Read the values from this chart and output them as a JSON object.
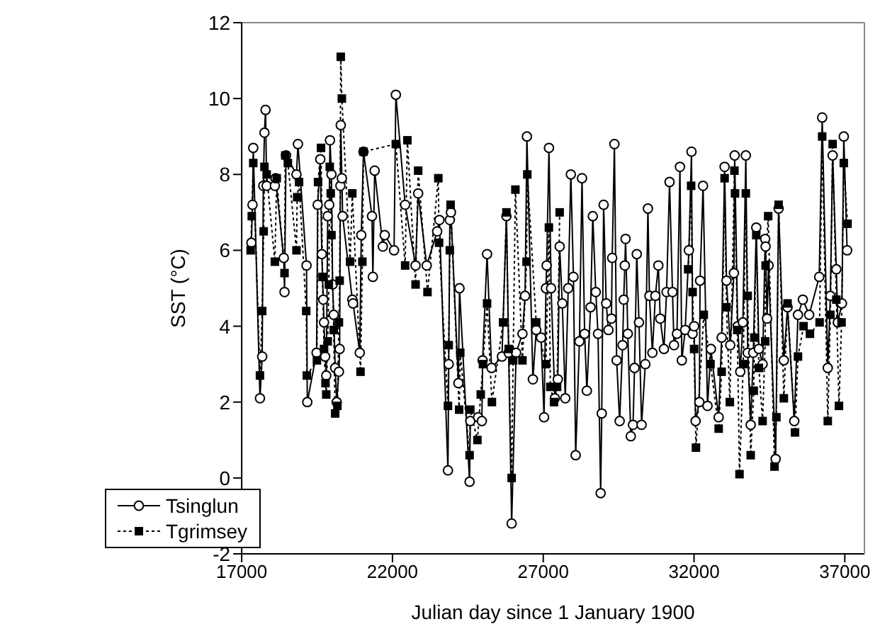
{
  "chart_data": {
    "type": "line",
    "xlabel": "Julian day since 1 January 1900",
    "ylabel": "SST (°C)",
    "xlim": [
      17000,
      37650
    ],
    "xticks": [
      17000,
      22000,
      27000,
      32000,
      37000
    ],
    "ylim": [
      -2,
      12
    ],
    "yticks": [
      -2,
      0,
      2,
      4,
      6,
      8,
      10,
      12
    ],
    "legend": "bottom left",
    "series": [
      {
        "name": "Tsinglun",
        "color": "#000000",
        "marker": "circle",
        "line_style": "solid",
        "x": [
          17321,
          17359,
          17383,
          17606,
          17680,
          17716,
          17754,
          17791,
          17828,
          18100,
          18124,
          18395,
          18420,
          18470,
          18816,
          18865,
          19150,
          19175,
          19483,
          19520,
          19606,
          19656,
          19705,
          19730,
          19767,
          19804,
          19853,
          19903,
          19927,
          19977,
          20014,
          20051,
          20100,
          20150,
          20224,
          20248,
          20273,
          20285,
          20322,
          20347,
          20668,
          20693,
          20915,
          20965,
          21039,
          21320,
          21350,
          21409,
          21681,
          21743,
          22052,
          22112,
          22420,
          22766,
          22852,
          23136,
          23482,
          23556,
          23840,
          23865,
          23902,
          23939,
          24186,
          24223,
          24557,
          24581,
          24841,
          24964,
          24989,
          25137,
          25285,
          25631,
          25779,
          25853,
          25952,
          26100,
          26310,
          26397,
          26458,
          26656,
          26767,
          26928,
          27027,
          27088,
          27113,
          27190,
          27260,
          27384,
          27483,
          27544,
          27631,
          27730,
          27828,
          27915,
          28001,
          28075,
          28199,
          28285,
          28372,
          28446,
          28569,
          28643,
          28742,
          28816,
          28903,
          28940,
          29002,
          29088,
          29162,
          29261,
          29286,
          29360,
          29434,
          29533,
          29631,
          29668,
          29705,
          29730,
          29804,
          29903,
          29977,
          30027,
          30101,
          30175,
          30261,
          30385,
          30471,
          30521,
          30619,
          30718,
          30817,
          30879,
          31002,
          31089,
          31188,
          31286,
          31336,
          31434,
          31533,
          31595,
          31706,
          31830,
          31916,
          31953,
          32003,
          32052,
          32176,
          32200,
          32299,
          32447,
          32560,
          32817,
          32916,
          33014,
          33076,
          33200,
          33323,
          33348,
          33447,
          33533,
          33620,
          33718,
          33780,
          33879,
          33965,
          34064,
          34150,
          34274,
          34360,
          34373,
          34422,
          34471,
          34706,
          34805,
          34978,
          35101,
          35324,
          35447,
          35608,
          35818,
          36151,
          36250,
          36435,
          36521,
          36596,
          36719,
          36768,
          36904,
          36966,
          37077
        ],
        "values": [
          6.2,
          7.2,
          8.7,
          2.1,
          3.2,
          7.7,
          9.1,
          9.7,
          7.7,
          7.7,
          7.9,
          5.8,
          4.9,
          8.5,
          8.0,
          8.8,
          5.6,
          2.0,
          3.3,
          7.2,
          8.4,
          5.9,
          4.7,
          4.1,
          3.2,
          2.7,
          6.9,
          7.2,
          8.9,
          8.0,
          5.1,
          4.3,
          2.9,
          2.0,
          2.8,
          3.4,
          7.7,
          9.3,
          7.9,
          6.9,
          4.7,
          4.6,
          3.3,
          6.4,
          8.6,
          6.9,
          5.3,
          8.1,
          6.1,
          6.4,
          6.0,
          10.1,
          7.2,
          5.6,
          7.5,
          5.6,
          6.5,
          6.8,
          0.2,
          3.0,
          6.8,
          7.0,
          2.5,
          5.0,
          -0.1,
          1.5,
          1.6,
          1.5,
          3.1,
          5.9,
          2.9,
          3.2,
          6.9,
          3.3,
          -1.2,
          3.3,
          3.8,
          4.8,
          9.0,
          2.6,
          3.9,
          3.7,
          1.6,
          5.0,
          5.6,
          8.7,
          5.0,
          2.1,
          2.6,
          6.1,
          4.6,
          2.1,
          5.0,
          8.0,
          5.3,
          0.6,
          3.6,
          7.9,
          3.8,
          2.3,
          4.5,
          6.9,
          4.9,
          3.8,
          -0.4,
          1.7,
          7.2,
          4.6,
          3.9,
          4.2,
          5.8,
          8.8,
          3.1,
          1.5,
          3.5,
          4.7,
          5.6,
          6.3,
          3.8,
          1.1,
          1.4,
          2.9,
          5.9,
          4.1,
          1.4,
          3.0,
          7.1,
          4.8,
          3.3,
          4.8,
          5.6,
          4.2,
          3.4,
          4.9,
          7.8,
          4.9,
          3.5,
          3.8,
          8.2,
          3.1,
          3.9,
          6.0,
          8.6,
          3.8,
          4.0,
          1.5,
          2.0,
          5.2,
          7.7,
          1.9,
          3.4,
          1.6,
          3.7,
          8.2,
          5.2,
          3.5,
          5.4,
          8.5,
          4.0,
          2.8,
          4.1,
          8.5,
          3.3,
          1.4,
          3.3,
          6.6,
          3.4,
          3.0,
          6.3,
          6.1,
          4.2,
          5.6,
          0.5,
          7.1,
          3.1,
          4.5,
          1.5,
          4.3,
          4.7,
          4.3,
          5.3,
          9.5,
          2.9,
          4.8,
          8.5,
          5.5,
          4.1,
          4.6,
          9.0,
          6.0
        ]
      },
      {
        "name": "Tgrimsey",
        "color": "#000000",
        "marker": "square",
        "line_style": "dotted",
        "x": [
          17297,
          17334,
          17383,
          17606,
          17680,
          17729,
          17754,
          17828,
          18100,
          18161,
          18420,
          18445,
          18532,
          18816,
          18840,
          18902,
          19140,
          19160,
          19495,
          19532,
          19631,
          19680,
          19730,
          19779,
          19804,
          19853,
          19890,
          19920,
          19952,
          19977,
          20051,
          20100,
          20174,
          20224,
          20248,
          20285,
          20322,
          20594,
          20668,
          20940,
          21002,
          21039,
          22111,
          22420,
          22494,
          22766,
          22852,
          23161,
          23520,
          23545,
          23840,
          23865,
          23902,
          23927,
          24211,
          24248,
          24557,
          24581,
          24816,
          24927,
          25001,
          25137,
          25297,
          25668,
          25779,
          25853,
          25952,
          26001,
          26076,
          26310,
          26446,
          26471,
          26767,
          27088,
          27187,
          27236,
          27359,
          27458,
          27544,
          29700,
          31805,
          31904,
          31953,
          32003,
          32064,
          32323,
          32546,
          32817,
          32916,
          33014,
          33076,
          33187,
          33340,
          33360,
          33434,
          33508,
          33632,
          33718,
          33780,
          33879,
          33980,
          34000,
          34064,
          34150,
          34274,
          34360,
          34373,
          34459,
          34669,
          34731,
          34805,
          34978,
          35101,
          35349,
          35447,
          35632,
          35843,
          36164,
          36250,
          36435,
          36521,
          36596,
          36719,
          36806,
          36892,
          36966,
          37090
        ],
        "values": [
          6.0,
          6.9,
          8.3,
          2.7,
          4.4,
          6.5,
          8.2,
          8.0,
          5.7,
          7.9,
          5.4,
          8.5,
          8.3,
          6.0,
          7.4,
          7.8,
          4.4,
          2.7,
          3.1,
          7.8,
          8.7,
          5.3,
          3.4,
          2.5,
          2.2,
          3.6,
          5.1,
          8.2,
          7.5,
          6.4,
          3.9,
          1.7,
          1.9,
          4.1,
          5.2,
          11.1,
          10.0,
          5.7,
          7.5,
          2.8,
          5.7,
          8.6,
          8.8,
          5.6,
          8.9,
          5.1,
          8.1,
          4.9,
          7.9,
          6.2,
          1.9,
          3.5,
          6.0,
          7.2,
          1.8,
          3.3,
          0.6,
          1.8,
          1.0,
          2.2,
          3.0,
          4.6,
          2.0,
          4.1,
          7.0,
          3.4,
          0.0,
          3.1,
          7.6,
          3.1,
          5.7,
          8.0,
          4.1,
          3.0,
          6.6,
          2.4,
          2.0,
          2.4,
          7.0,
          null,
          5.5,
          7.7,
          4.9,
          3.4,
          0.8,
          4.3,
          3.0,
          1.3,
          2.8,
          7.9,
          4.5,
          2.0,
          8.1,
          7.5,
          3.9,
          0.1,
          3.0,
          7.5,
          4.8,
          0.6,
          2.3,
          3.7,
          6.4,
          2.9,
          1.5,
          3.6,
          5.6,
          6.9,
          0.3,
          1.6,
          7.2,
          2.1,
          4.6,
          1.2,
          3.2,
          4.0,
          3.8,
          4.1,
          9.0,
          1.5,
          4.3,
          8.8,
          4.7,
          1.9,
          4.1,
          8.3,
          6.7
        ]
      }
    ]
  }
}
